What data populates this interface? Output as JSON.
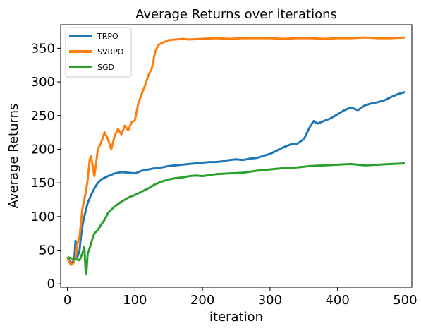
{
  "chart_data": {
    "type": "line",
    "title": "Average Returns  over iterations",
    "xlabel": "iteration",
    "ylabel": "Average Returns",
    "xlim": [
      -10,
      510
    ],
    "ylim": [
      -5,
      385
    ],
    "xticks": [
      0,
      100,
      200,
      300,
      400,
      500
    ],
    "yticks": [
      0,
      50,
      100,
      150,
      200,
      250,
      300,
      350
    ],
    "grid": false,
    "legend_position": "top-left",
    "series": [
      {
        "name": "TRPO",
        "color": "#1f77b4",
        "x": [
          0,
          5,
          10,
          12,
          15,
          18,
          20,
          22,
          25,
          28,
          30,
          35,
          40,
          45,
          50,
          60,
          70,
          80,
          90,
          100,
          110,
          120,
          130,
          140,
          150,
          160,
          170,
          180,
          190,
          200,
          210,
          220,
          230,
          240,
          250,
          260,
          270,
          280,
          290,
          300,
          310,
          320,
          330,
          340,
          350,
          355,
          360,
          365,
          370,
          380,
          390,
          400,
          410,
          420,
          430,
          440,
          450,
          460,
          470,
          480,
          490,
          500
        ],
        "y": [
          40,
          30,
          35,
          64,
          40,
          50,
          70,
          85,
          100,
          112,
          120,
          132,
          142,
          150,
          155,
          160,
          164,
          166,
          165,
          164,
          168,
          170,
          172,
          173,
          175,
          176,
          177,
          178,
          179,
          180,
          181,
          181,
          182,
          184,
          185,
          184,
          186,
          187,
          190,
          193,
          198,
          203,
          207,
          208,
          215,
          225,
          235,
          242,
          238,
          242,
          246,
          252,
          258,
          262,
          258,
          265,
          268,
          270,
          273,
          278,
          282,
          285
        ]
      },
      {
        "name": "SVRPO",
        "color": "#ff7f0e",
        "x": [
          0,
          5,
          8,
          10,
          12,
          15,
          18,
          20,
          22,
          25,
          28,
          30,
          33,
          35,
          38,
          40,
          45,
          50,
          55,
          60,
          65,
          70,
          75,
          80,
          85,
          90,
          95,
          100,
          105,
          110,
          115,
          120,
          125,
          130,
          135,
          140,
          150,
          160,
          170,
          180,
          200,
          220,
          240,
          260,
          280,
          300,
          320,
          340,
          360,
          380,
          400,
          420,
          440,
          460,
          480,
          500
        ],
        "y": [
          38,
          28,
          30,
          32,
          40,
          60,
          70,
          90,
          110,
          125,
          140,
          155,
          185,
          190,
          170,
          160,
          200,
          210,
          225,
          215,
          200,
          220,
          230,
          222,
          235,
          228,
          240,
          243,
          268,
          282,
          295,
          310,
          320,
          345,
          355,
          358,
          362,
          363,
          364,
          363,
          364,
          365,
          364,
          365,
          365,
          365,
          364,
          365,
          365,
          364,
          365,
          365,
          366,
          365,
          365,
          366
        ]
      },
      {
        "name": "SGD",
        "color": "#2ca02c",
        "x": [
          0,
          5,
          10,
          15,
          18,
          20,
          22,
          25,
          27,
          28,
          30,
          32,
          35,
          38,
          40,
          45,
          50,
          55,
          60,
          65,
          70,
          80,
          90,
          100,
          110,
          120,
          130,
          140,
          150,
          160,
          170,
          180,
          190,
          200,
          220,
          240,
          260,
          280,
          300,
          320,
          340,
          360,
          380,
          400,
          420,
          440,
          460,
          480,
          500
        ],
        "y": [
          40,
          38,
          37,
          36,
          35,
          40,
          45,
          55,
          20,
          15,
          45,
          50,
          60,
          70,
          75,
          80,
          88,
          95,
          105,
          110,
          115,
          122,
          128,
          132,
          137,
          142,
          148,
          152,
          155,
          157,
          158,
          160,
          161,
          160,
          163,
          164,
          165,
          168,
          170,
          172,
          173,
          175,
          176,
          177,
          178,
          176,
          177,
          178,
          179
        ]
      }
    ]
  }
}
